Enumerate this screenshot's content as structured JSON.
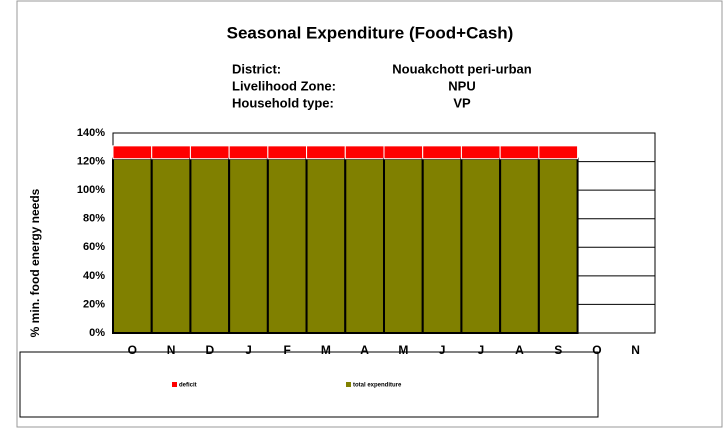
{
  "chart_data": {
    "type": "bar",
    "stacked": true,
    "title": "Seasonal Expenditure (Food+Cash)",
    "info": [
      {
        "label": "District:",
        "value": "Nouakchott peri-urban"
      },
      {
        "label": "Livelihood Zone:",
        "value": "NPU"
      },
      {
        "label": "Household type:",
        "value": "VP"
      }
    ],
    "y_label": "% min. food energy needs",
    "categories": [
      "O",
      "N",
      "D",
      "J",
      "F",
      "M",
      "A",
      "M",
      "J",
      "J",
      "A",
      "S",
      "O",
      "N"
    ],
    "series": [
      {
        "name": "total expenditure",
        "color": "#808000",
        "values": [
          122,
          122,
          122,
          122,
          122,
          122,
          122,
          122,
          122,
          122,
          122,
          122,
          null,
          null
        ]
      },
      {
        "name": "deficit",
        "color": "#ff0000",
        "values": [
          9,
          9,
          9,
          9,
          9,
          9,
          9,
          9,
          9,
          9,
          9,
          9,
          null,
          null
        ]
      }
    ],
    "ylim": [
      0,
      140
    ],
    "yticks": [
      {
        "value": 0,
        "label": "0%"
      },
      {
        "value": 20,
        "label": "20%"
      },
      {
        "value": 40,
        "label": "40%"
      },
      {
        "value": 60,
        "label": "60%"
      },
      {
        "value": 80,
        "label": "80%"
      },
      {
        "value": 100,
        "label": "100%"
      },
      {
        "value": 120,
        "label": "120%"
      },
      {
        "value": 140,
        "label": "140%"
      }
    ],
    "grid": true
  }
}
